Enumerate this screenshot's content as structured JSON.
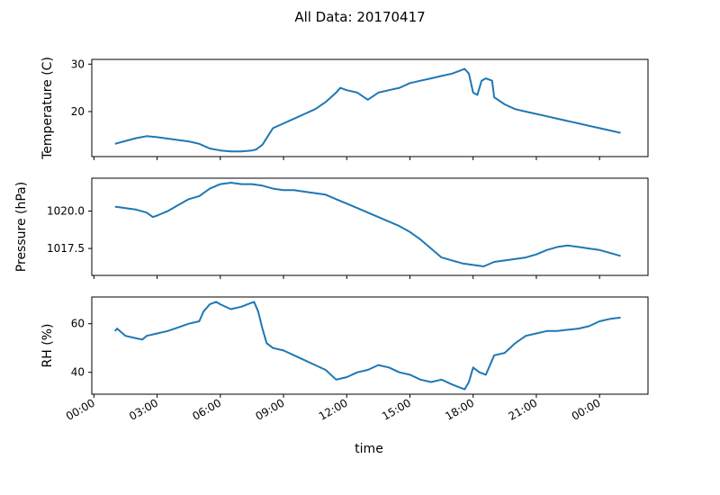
{
  "figure": {
    "suptitle": "All Data: 20170417",
    "xlabel": "time",
    "line_color": "#1f77b4"
  },
  "chart_data": [
    {
      "type": "line",
      "ylabel": "Temperature (C)",
      "ylim": [
        10.5,
        31
      ],
      "yticks": [
        20,
        30
      ],
      "ytick_labels": [
        "20",
        "30"
      ],
      "grid": false,
      "series": [
        {
          "x_hours": [
            1.0,
            1.5,
            2.0,
            2.5,
            3.0,
            3.5,
            4.0,
            4.5,
            5.0,
            5.5,
            6.0,
            6.5,
            7.0,
            7.5,
            7.7,
            8.0,
            8.5,
            9.0,
            9.5,
            10.0,
            10.5,
            11.0,
            11.5,
            11.7,
            12.0,
            12.5,
            13.0,
            13.5,
            14.0,
            14.5,
            15.0,
            15.5,
            16.0,
            16.5,
            17.0,
            17.3,
            17.6,
            17.8,
            18.0,
            18.2,
            18.4,
            18.6,
            18.9,
            19.0,
            19.5,
            20.0,
            20.5,
            21.0,
            21.5,
            22.0,
            22.5,
            23.0,
            23.5,
            24.0,
            24.5,
            25.0
          ],
          "values": [
            13.2,
            13.8,
            14.4,
            14.8,
            14.6,
            14.3,
            14.0,
            13.7,
            13.2,
            12.2,
            11.8,
            11.6,
            11.6,
            11.8,
            12.0,
            13.0,
            16.5,
            17.5,
            18.5,
            19.5,
            20.5,
            22.0,
            24.0,
            25.0,
            24.5,
            24.0,
            22.5,
            24.0,
            24.5,
            25.0,
            26.0,
            26.5,
            27.0,
            27.5,
            28.0,
            28.5,
            29.0,
            28.0,
            24.0,
            23.5,
            26.5,
            27.0,
            26.5,
            23.0,
            21.5,
            20.5,
            20.0,
            19.5,
            19.0,
            18.5,
            18.0,
            17.5,
            17.0,
            16.5,
            16.0,
            15.5
          ]
        }
      ]
    },
    {
      "type": "line",
      "ylabel": "Pressure (hPa)",
      "ylim": [
        1015.7,
        1022.2
      ],
      "yticks": [
        1017.5,
        1020.0
      ],
      "ytick_labels": [
        "1017.5",
        "1020.0"
      ],
      "grid": false,
      "series": [
        {
          "x_hours": [
            1.0,
            1.5,
            2.0,
            2.5,
            2.8,
            3.0,
            3.5,
            4.0,
            4.5,
            5.0,
            5.5,
            6.0,
            6.5,
            7.0,
            7.5,
            8.0,
            8.5,
            9.0,
            9.5,
            10.0,
            10.5,
            11.0,
            11.5,
            12.0,
            12.5,
            13.0,
            13.5,
            14.0,
            14.5,
            15.0,
            15.5,
            16.0,
            16.5,
            17.0,
            17.5,
            18.0,
            18.5,
            19.0,
            19.5,
            20.0,
            20.5,
            21.0,
            21.5,
            22.0,
            22.5,
            23.0,
            23.5,
            24.0,
            24.5,
            25.0
          ],
          "values": [
            1020.3,
            1020.2,
            1020.1,
            1019.9,
            1019.6,
            1019.7,
            1020.0,
            1020.4,
            1020.8,
            1021.0,
            1021.5,
            1021.8,
            1021.9,
            1021.8,
            1021.8,
            1021.7,
            1021.5,
            1021.4,
            1021.4,
            1021.3,
            1021.2,
            1021.1,
            1020.8,
            1020.5,
            1020.2,
            1019.9,
            1019.6,
            1019.3,
            1019.0,
            1018.6,
            1018.1,
            1017.5,
            1016.9,
            1016.7,
            1016.5,
            1016.4,
            1016.3,
            1016.6,
            1016.7,
            1016.8,
            1016.9,
            1017.1,
            1017.4,
            1017.6,
            1017.7,
            1017.6,
            1017.5,
            1017.4,
            1017.2,
            1017.0
          ]
        }
      ]
    },
    {
      "type": "line",
      "ylabel": "RH (%)",
      "ylim": [
        31,
        71
      ],
      "yticks": [
        40,
        60
      ],
      "ytick_labels": [
        "40",
        "60"
      ],
      "grid": false,
      "series": [
        {
          "x_hours": [
            1.0,
            1.1,
            1.5,
            2.0,
            2.3,
            2.5,
            3.0,
            3.5,
            4.0,
            4.5,
            5.0,
            5.2,
            5.5,
            5.8,
            6.0,
            6.5,
            7.0,
            7.3,
            7.6,
            7.8,
            8.0,
            8.2,
            8.5,
            9.0,
            9.5,
            10.0,
            10.5,
            11.0,
            11.5,
            12.0,
            12.5,
            13.0,
            13.5,
            14.0,
            14.5,
            15.0,
            15.5,
            16.0,
            16.5,
            17.0,
            17.3,
            17.6,
            17.8,
            18.0,
            18.3,
            18.6,
            18.9,
            19.0,
            19.5,
            20.0,
            20.5,
            21.0,
            21.5,
            22.0,
            22.5,
            23.0,
            23.5,
            24.0,
            24.5,
            25.0
          ],
          "values": [
            57.0,
            58.0,
            55.0,
            54.0,
            53.5,
            55.0,
            56.0,
            57.0,
            58.5,
            60.0,
            61.0,
            65.0,
            68.0,
            69.0,
            68.0,
            66.0,
            67.0,
            68.0,
            69.0,
            65.0,
            58.0,
            52.0,
            50.0,
            49.0,
            47.0,
            45.0,
            43.0,
            41.0,
            37.0,
            38.0,
            40.0,
            41.0,
            43.0,
            42.0,
            40.0,
            39.0,
            37.0,
            36.0,
            37.0,
            35.0,
            34.0,
            33.0,
            36.0,
            42.0,
            40.0,
            39.0,
            45.0,
            47.0,
            48.0,
            52.0,
            55.0,
            56.0,
            57.0,
            57.0,
            57.5,
            58.0,
            59.0,
            61.0,
            62.0,
            62.5
          ]
        }
      ]
    }
  ],
  "x_axis": {
    "xlim_hours": [
      -0.1,
      26.3
    ],
    "tick_hours": [
      0,
      3,
      6,
      9,
      12,
      15,
      18,
      21,
      24
    ],
    "tick_labels": [
      "00:00",
      "03:00",
      "06:00",
      "09:00",
      "12:00",
      "15:00",
      "18:00",
      "21:00",
      "00:00"
    ]
  }
}
